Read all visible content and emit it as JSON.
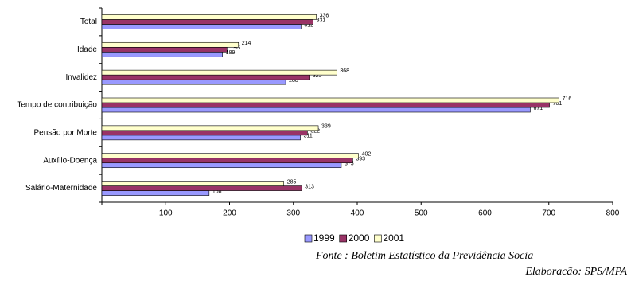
{
  "chart_data": {
    "type": "hbar",
    "categories": [
      "Total",
      "Idade",
      "Invalidez",
      "Tempo de contribuição",
      "Pensão por Morte",
      "Auxílio-Doença",
      "Salário-Maternidade"
    ],
    "series": [
      {
        "name": "1999",
        "color": "#9999ff",
        "values": [
          312,
          189,
          288,
          671,
          311,
          375,
          168
        ]
      },
      {
        "name": "2000",
        "color": "#993366",
        "values": [
          331,
          196,
          325,
          701,
          322,
          393,
          313
        ]
      },
      {
        "name": "2001",
        "color": "#ffffcc",
        "values": [
          336,
          214,
          368,
          716,
          339,
          402,
          285
        ]
      }
    ],
    "xlim": [
      0,
      800
    ],
    "xticks": [
      {
        "value": 0,
        "label": "-"
      },
      100,
      200,
      300,
      400,
      500,
      600,
      700,
      800
    ],
    "legend": "bottom",
    "source": "Fonte :  Boletim Estatístico da Previdência Socia",
    "credit": "Elaboracão: SPS/MPA"
  }
}
